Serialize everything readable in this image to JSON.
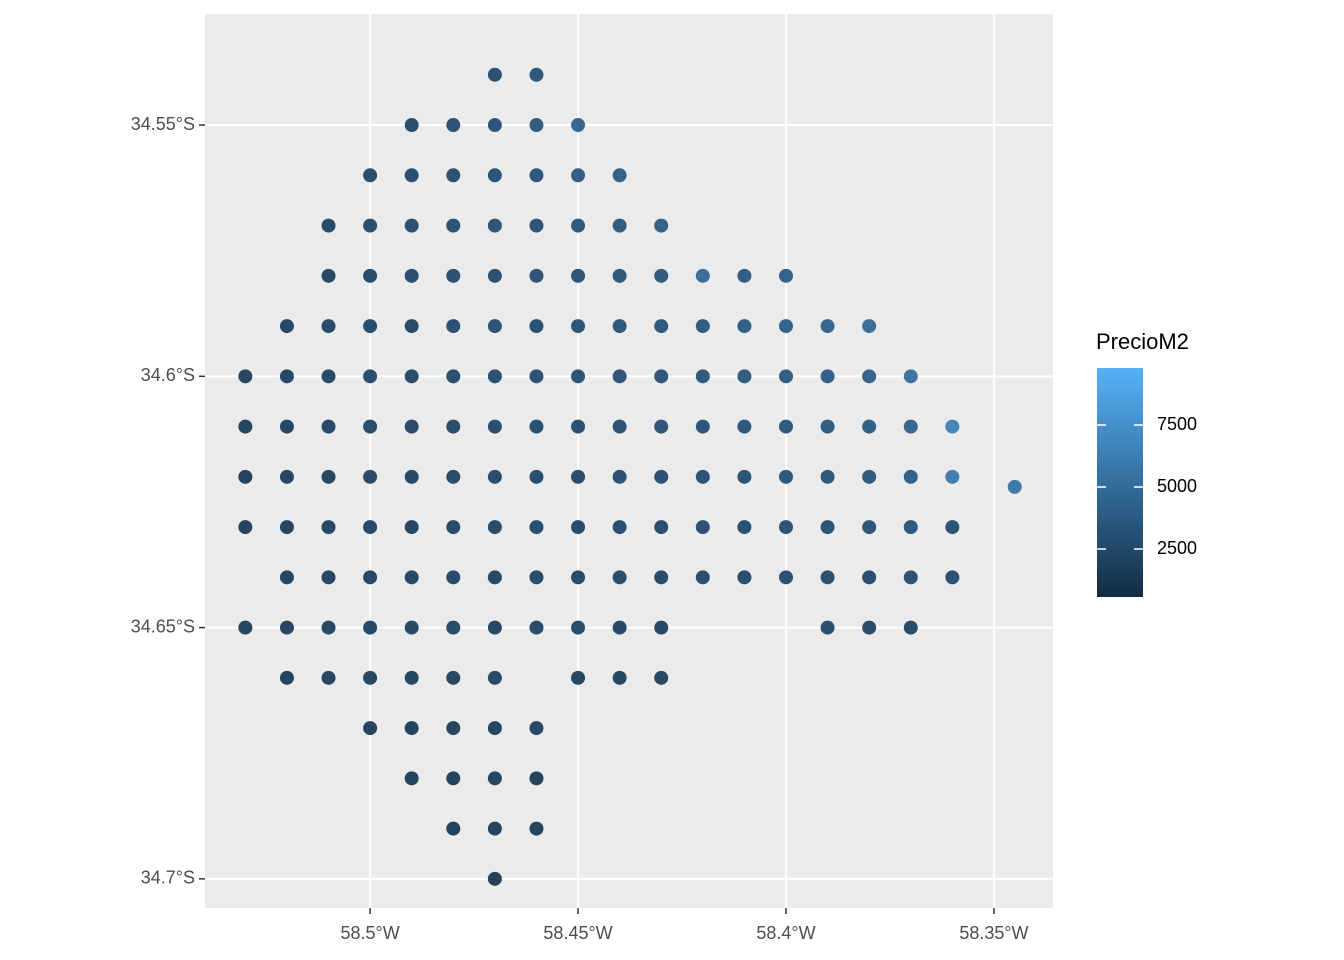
{
  "chart_data": {
    "type": "scatter",
    "x": [
      -58.47,
      -58.46,
      -58.49,
      -58.48,
      -58.47,
      -58.46,
      -58.45,
      -58.5,
      -58.49,
      -58.48,
      -58.47,
      -58.46,
      -58.45,
      -58.44,
      -58.51,
      -58.5,
      -58.49,
      -58.48,
      -58.47,
      -58.46,
      -58.45,
      -58.44,
      -58.43,
      -58.51,
      -58.5,
      -58.49,
      -58.48,
      -58.47,
      -58.46,
      -58.45,
      -58.44,
      -58.43,
      -58.42,
      -58.41,
      -58.4,
      -58.52,
      -58.51,
      -58.5,
      -58.49,
      -58.48,
      -58.47,
      -58.46,
      -58.45,
      -58.44,
      -58.43,
      -58.42,
      -58.41,
      -58.4,
      -58.39,
      -58.38,
      -58.53,
      -58.52,
      -58.51,
      -58.5,
      -58.49,
      -58.48,
      -58.47,
      -58.46,
      -58.45,
      -58.44,
      -58.43,
      -58.42,
      -58.41,
      -58.4,
      -58.39,
      -58.38,
      -58.37,
      -58.53,
      -58.52,
      -58.51,
      -58.5,
      -58.49,
      -58.48,
      -58.47,
      -58.46,
      -58.45,
      -58.44,
      -58.43,
      -58.42,
      -58.41,
      -58.4,
      -58.39,
      -58.38,
      -58.37,
      -58.36,
      -58.53,
      -58.52,
      -58.51,
      -58.5,
      -58.49,
      -58.48,
      -58.47,
      -58.46,
      -58.45,
      -58.44,
      -58.43,
      -58.42,
      -58.41,
      -58.4,
      -58.39,
      -58.38,
      -58.37,
      -58.36,
      -58.345,
      -58.53,
      -58.52,
      -58.51,
      -58.5,
      -58.49,
      -58.48,
      -58.47,
      -58.46,
      -58.45,
      -58.44,
      -58.43,
      -58.42,
      -58.41,
      -58.4,
      -58.39,
      -58.38,
      -58.37,
      -58.36,
      -58.52,
      -58.51,
      -58.5,
      -58.49,
      -58.48,
      -58.47,
      -58.46,
      -58.45,
      -58.44,
      -58.43,
      -58.42,
      -58.41,
      -58.4,
      -58.39,
      -58.38,
      -58.37,
      -58.36,
      -58.53,
      -58.52,
      -58.51,
      -58.5,
      -58.49,
      -58.48,
      -58.47,
      -58.46,
      -58.45,
      -58.44,
      -58.43,
      -58.39,
      -58.38,
      -58.37,
      -58.52,
      -58.51,
      -58.5,
      -58.49,
      -58.48,
      -58.47,
      -58.45,
      -58.44,
      -58.43,
      -58.5,
      -58.49,
      -58.48,
      -58.47,
      -58.46,
      -58.49,
      -58.48,
      -58.47,
      -58.46,
      -58.48,
      -58.47,
      -58.46,
      -58.47
    ],
    "y": [
      -34.54,
      -34.54,
      -34.55,
      -34.55,
      -34.55,
      -34.55,
      -34.55,
      -34.56,
      -34.56,
      -34.56,
      -34.56,
      -34.56,
      -34.56,
      -34.56,
      -34.57,
      -34.57,
      -34.57,
      -34.57,
      -34.57,
      -34.57,
      -34.57,
      -34.57,
      -34.57,
      -34.58,
      -34.58,
      -34.58,
      -34.58,
      -34.58,
      -34.58,
      -34.58,
      -34.58,
      -34.58,
      -34.58,
      -34.58,
      -34.58,
      -34.59,
      -34.59,
      -34.59,
      -34.59,
      -34.59,
      -34.59,
      -34.59,
      -34.59,
      -34.59,
      -34.59,
      -34.59,
      -34.59,
      -34.59,
      -34.59,
      -34.59,
      -34.6,
      -34.6,
      -34.6,
      -34.6,
      -34.6,
      -34.6,
      -34.6,
      -34.6,
      -34.6,
      -34.6,
      -34.6,
      -34.6,
      -34.6,
      -34.6,
      -34.6,
      -34.6,
      -34.6,
      -34.61,
      -34.61,
      -34.61,
      -34.61,
      -34.61,
      -34.61,
      -34.61,
      -34.61,
      -34.61,
      -34.61,
      -34.61,
      -34.61,
      -34.61,
      -34.61,
      -34.61,
      -34.61,
      -34.61,
      -34.61,
      -34.62,
      -34.62,
      -34.62,
      -34.62,
      -34.62,
      -34.62,
      -34.62,
      -34.62,
      -34.62,
      -34.62,
      -34.62,
      -34.62,
      -34.62,
      -34.62,
      -34.62,
      -34.62,
      -34.62,
      -34.62,
      -34.622,
      -34.63,
      -34.63,
      -34.63,
      -34.63,
      -34.63,
      -34.63,
      -34.63,
      -34.63,
      -34.63,
      -34.63,
      -34.63,
      -34.63,
      -34.63,
      -34.63,
      -34.63,
      -34.63,
      -34.63,
      -34.63,
      -34.64,
      -34.64,
      -34.64,
      -34.64,
      -34.64,
      -34.64,
      -34.64,
      -34.64,
      -34.64,
      -34.64,
      -34.64,
      -34.64,
      -34.64,
      -34.64,
      -34.64,
      -34.64,
      -34.64,
      -34.65,
      -34.65,
      -34.65,
      -34.65,
      -34.65,
      -34.65,
      -34.65,
      -34.65,
      -34.65,
      -34.65,
      -34.65,
      -34.65,
      -34.65,
      -34.65,
      -34.66,
      -34.66,
      -34.66,
      -34.66,
      -34.66,
      -34.66,
      -34.66,
      -34.66,
      -34.66,
      -34.67,
      -34.67,
      -34.67,
      -34.67,
      -34.67,
      -34.68,
      -34.68,
      -34.68,
      -34.68,
      -34.69,
      -34.69,
      -34.69,
      -34.7
    ],
    "values": [
      2600,
      3200,
      2400,
      2800,
      3000,
      3400,
      4200,
      2300,
      2500,
      2700,
      2900,
      3100,
      3600,
      3800,
      2200,
      2400,
      2600,
      2800,
      3000,
      2900,
      3300,
      3500,
      3900,
      2100,
      2300,
      2500,
      2700,
      2600,
      2900,
      3000,
      3200,
      3400,
      4800,
      3600,
      3900,
      2000,
      2200,
      2400,
      2300,
      2600,
      2800,
      2700,
      3000,
      3100,
      3300,
      3500,
      3700,
      4000,
      4300,
      4800,
      1900,
      2100,
      2200,
      2400,
      2300,
      2500,
      2600,
      2800,
      2900,
      3000,
      3100,
      3300,
      3500,
      3600,
      3800,
      4000,
      5200,
      1800,
      2000,
      2100,
      2300,
      2200,
      2400,
      2500,
      2700,
      2600,
      2800,
      2900,
      3000,
      3200,
      3300,
      3500,
      3700,
      4200,
      6500,
      1700,
      1900,
      2000,
      2200,
      2100,
      2300,
      2400,
      2500,
      2400,
      2600,
      2700,
      2800,
      2900,
      3100,
      3200,
      3400,
      3800,
      6000,
      5600,
      1700,
      1800,
      2000,
      2100,
      2000,
      2200,
      2300,
      2400,
      2300,
      2500,
      2400,
      2600,
      2700,
      2800,
      2900,
      3000,
      3200,
      2900,
      1800,
      1900,
      2000,
      2100,
      2200,
      2100,
      2300,
      2200,
      2400,
      2300,
      2500,
      2400,
      2600,
      2700,
      2500,
      2800,
      2600,
      1800,
      1900,
      2000,
      2100,
      2000,
      2200,
      2100,
      2300,
      2200,
      2100,
      2000,
      2400,
      2300,
      2200,
      1700,
      1800,
      1900,
      2000,
      1900,
      2100,
      1800,
      1900,
      2000,
      1600,
      1700,
      1800,
      1900,
      2000,
      1600,
      1700,
      1800,
      1700,
      1500,
      1600,
      1700,
      1400
    ],
    "xlim": [
      -58.5397,
      -58.3358
    ],
    "ylim": [
      -34.7058,
      -34.5279
    ],
    "xticks": [
      {
        "value": -58.5,
        "label": "58.5°W"
      },
      {
        "value": -58.45,
        "label": "58.45°W"
      },
      {
        "value": -58.4,
        "label": "58.4°W"
      },
      {
        "value": -58.35,
        "label": "58.35°W"
      }
    ],
    "yticks": [
      {
        "value": -34.55,
        "label": "34.55°S"
      },
      {
        "value": -34.6,
        "label": "34.6°S"
      },
      {
        "value": -34.65,
        "label": "34.65°S"
      },
      {
        "value": -34.7,
        "label": "34.7°S"
      }
    ],
    "grid": true,
    "legend_title": "PrecioM2",
    "colorlim": [
      565,
      9800
    ],
    "colorticks": [
      2500,
      5000,
      7500
    ],
    "color_low": "#132B43",
    "color_high": "#56B1F7"
  }
}
